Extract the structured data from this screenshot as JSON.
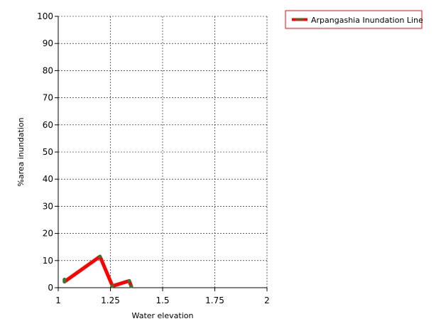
{
  "chart_data": {
    "type": "line",
    "title": "",
    "xlabel": "Water elevation",
    "ylabel": "%area inundation",
    "xlim": [
      1,
      2
    ],
    "ylim": [
      0,
      100
    ],
    "x_ticks": [
      1,
      1.25,
      1.5,
      1.75,
      2
    ],
    "x_tick_labels": [
      "1",
      "1.25",
      "1.5",
      "1.75",
      "2"
    ],
    "y_ticks": [
      0,
      10,
      20,
      30,
      40,
      50,
      60,
      70,
      80,
      90,
      100
    ],
    "y_tick_labels": [
      "0",
      "10",
      "20",
      "30",
      "40",
      "50",
      "60",
      "70",
      "80",
      "90",
      "100"
    ],
    "grid": true,
    "legend_position": "top-right",
    "series": [
      {
        "name": "Arpangashia Inundation Line",
        "color": "#ff0000",
        "marker_color": "#2e7d32",
        "points": [
          {
            "x": 1.03,
            "y": 3.0
          },
          {
            "x": 1.03,
            "y": 2.2
          },
          {
            "x": 1.2,
            "y": 11.5
          },
          {
            "x": 1.26,
            "y": 0.6
          },
          {
            "x": 1.34,
            "y": 2.5
          },
          {
            "x": 1.35,
            "y": 0.5
          }
        ]
      }
    ]
  }
}
